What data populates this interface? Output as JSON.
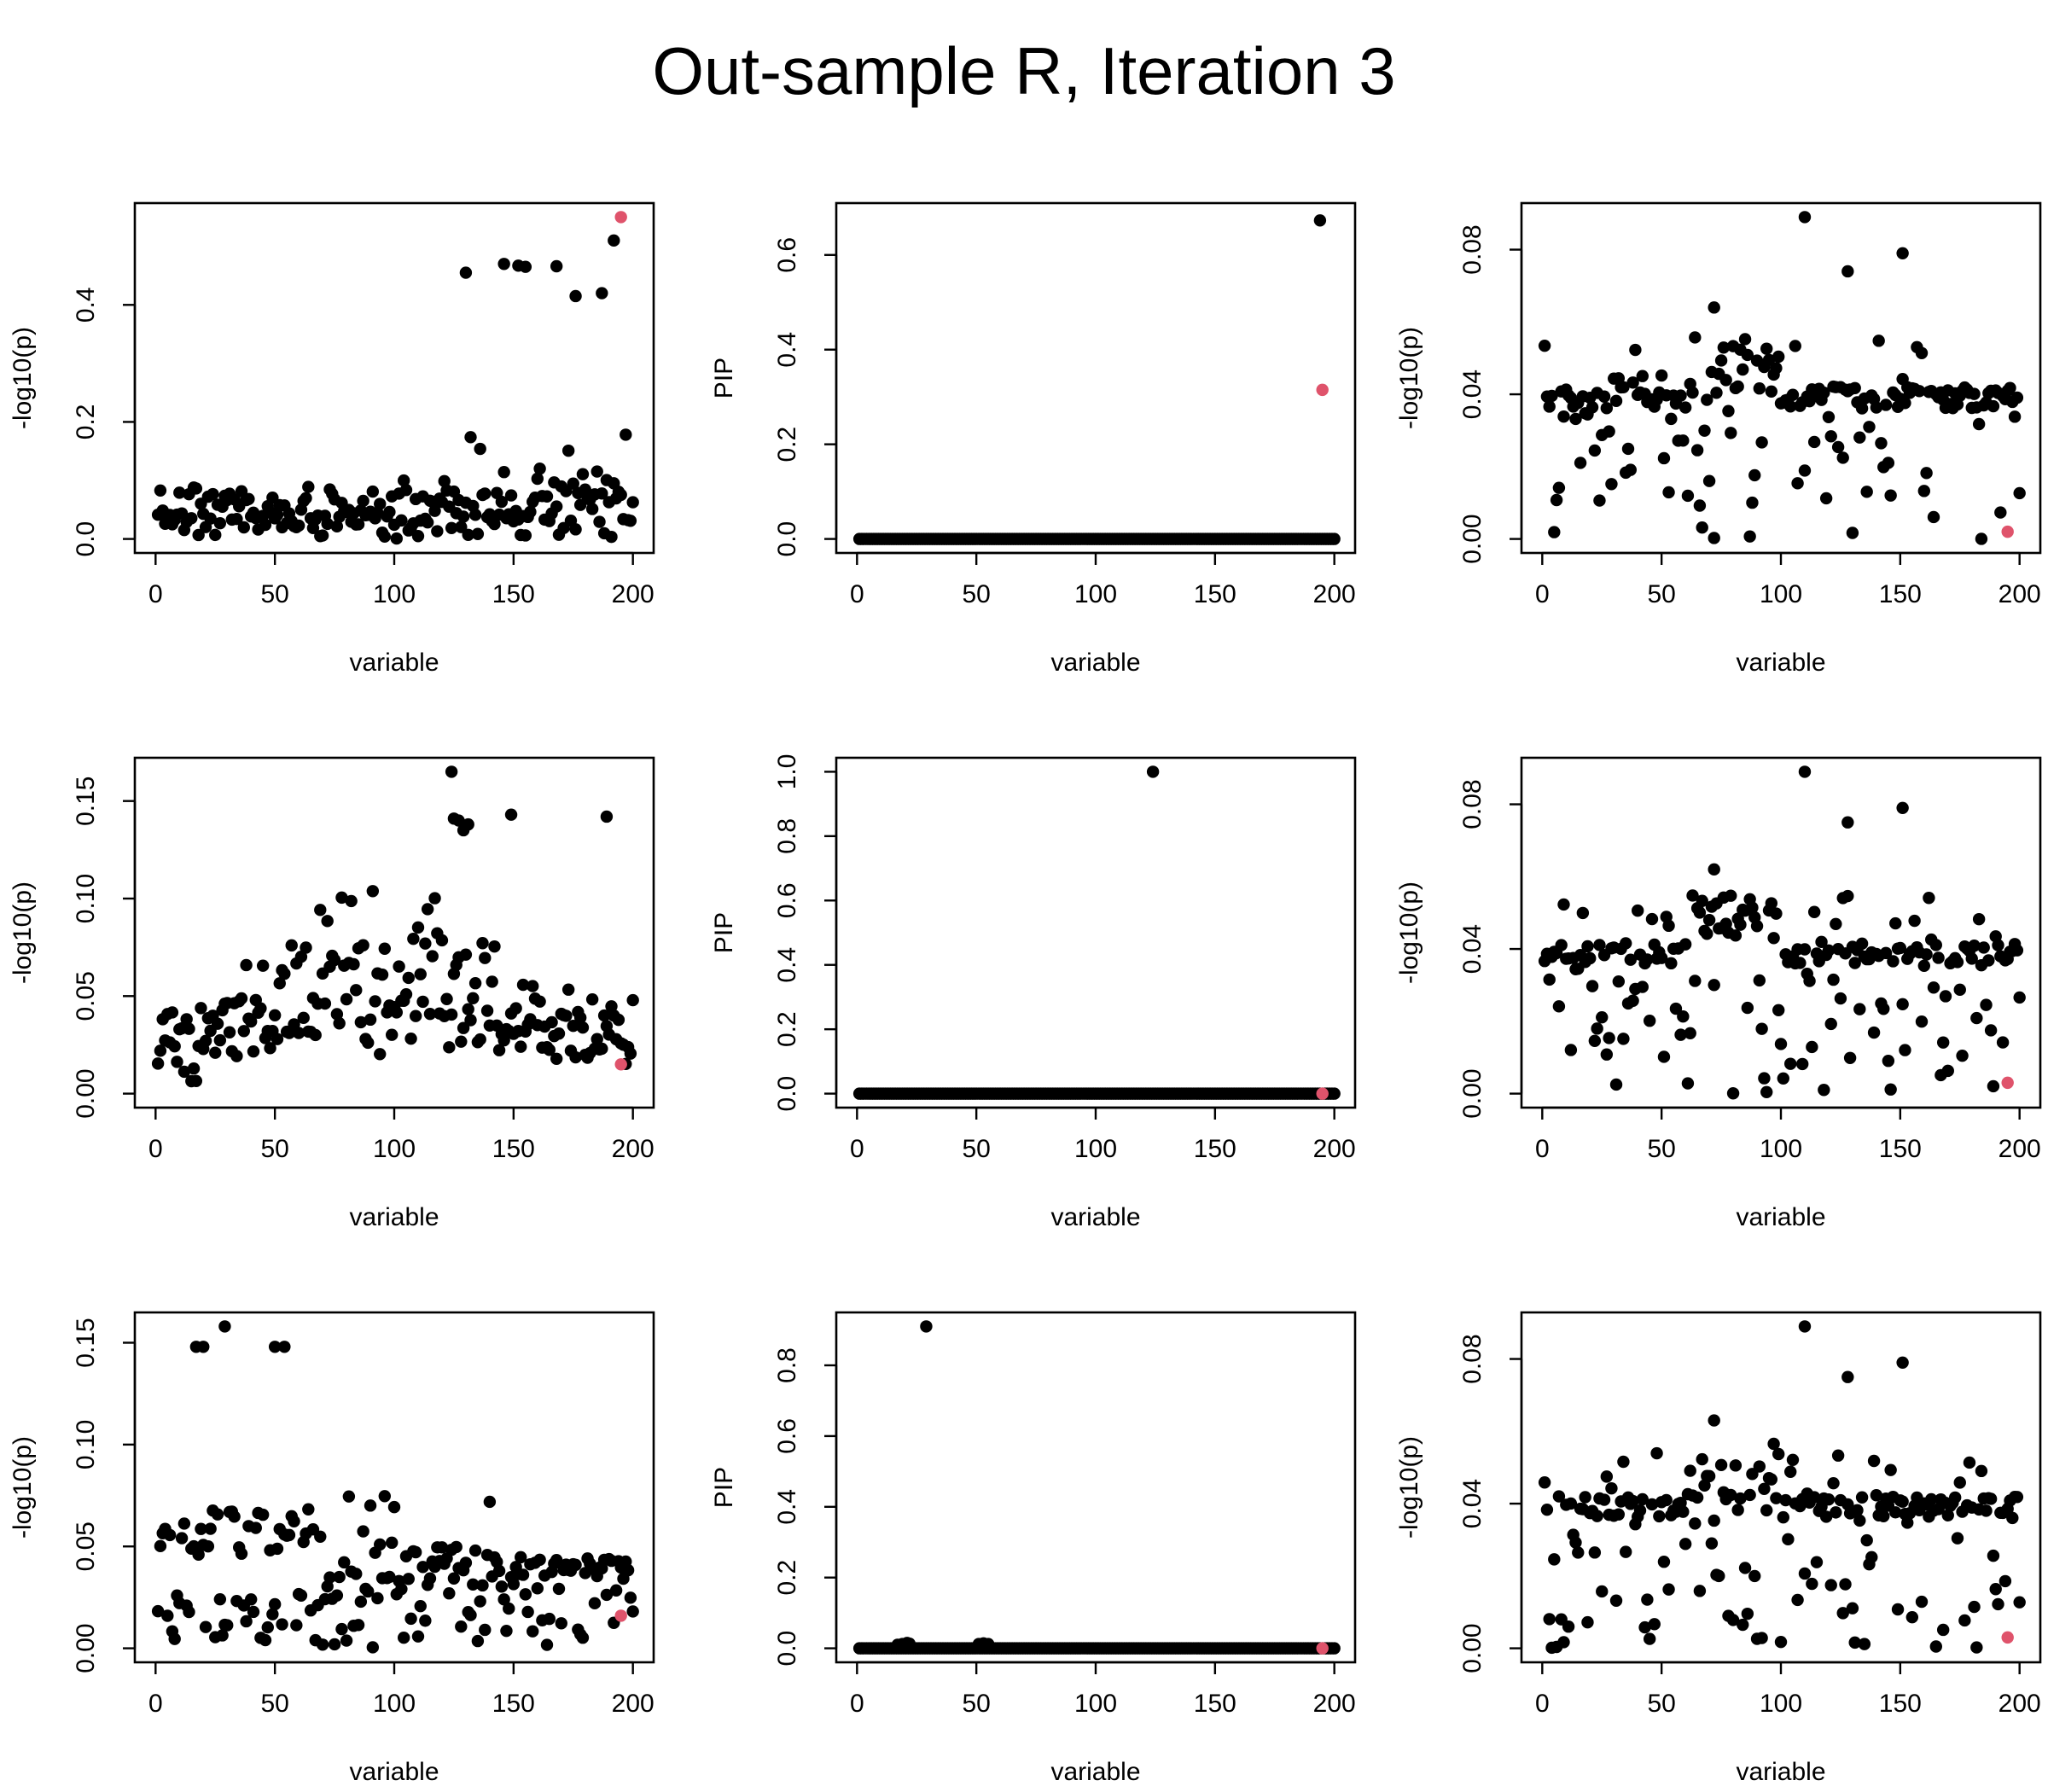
{
  "figure": {
    "title": "Out-sample R, Iteration 3",
    "colors": {
      "point": "#000000",
      "highlight": "#DF536B",
      "background": "#ffffff"
    }
  },
  "chart_data": [
    {
      "type": "scatter",
      "panel": "row1-col1",
      "xlabel": "variable",
      "ylabel": "-log10(p)",
      "xlim": [
        0,
        200
      ],
      "ylim": [
        0,
        0.55
      ],
      "xticks": [
        "0",
        "50",
        "100",
        "150",
        "200"
      ],
      "yticks": [
        "0.0",
        "0.2",
        "0.4"
      ],
      "highlight": {
        "x": 195,
        "y": 0.55
      },
      "notable_points": [
        {
          "x": 130,
          "y": 0.455
        },
        {
          "x": 146,
          "y": 0.47
        },
        {
          "x": 152,
          "y": 0.467
        },
        {
          "x": 155,
          "y": 0.465
        },
        {
          "x": 168,
          "y": 0.466
        },
        {
          "x": 176,
          "y": 0.415
        },
        {
          "x": 187,
          "y": 0.42
        },
        {
          "x": 192,
          "y": 0.51
        }
      ]
    },
    {
      "type": "scatter",
      "panel": "row1-col2",
      "xlabel": "variable",
      "ylabel": "PIP",
      "xlim": [
        0,
        200
      ],
      "ylim": [
        0,
        0.68
      ],
      "xticks": [
        "0",
        "50",
        "100",
        "150",
        "200"
      ],
      "yticks": [
        "0.0",
        "0.2",
        "0.4",
        "0.6"
      ],
      "highlight": {
        "x": 195,
        "y": 0.315
      },
      "notable_points": [
        {
          "x": 194,
          "y": 0.673
        }
      ]
    },
    {
      "type": "scatter",
      "panel": "row1-col3",
      "xlabel": "variable",
      "ylabel": "-log10(p)",
      "xlim": [
        0,
        200
      ],
      "ylim": [
        0,
        0.089
      ],
      "xticks": [
        "0",
        "50",
        "100",
        "150",
        "200"
      ],
      "yticks": [
        "0.00",
        "0.04",
        "0.08"
      ],
      "highlight": {
        "x": 195,
        "y": 0.002
      },
      "notable_points": [
        {
          "x": 110,
          "y": 0.089
        },
        {
          "x": 151,
          "y": 0.079
        },
        {
          "x": 128,
          "y": 0.074
        },
        {
          "x": 72,
          "y": 0.064
        }
      ]
    },
    {
      "type": "scatter",
      "panel": "row2-col1",
      "xlabel": "variable",
      "ylabel": "-log10(p)",
      "xlim": [
        0,
        200
      ],
      "ylim": [
        0,
        0.165
      ],
      "xticks": [
        "0",
        "50",
        "100",
        "150",
        "200"
      ],
      "yticks": [
        "0.00",
        "0.05",
        "0.10",
        "0.15"
      ],
      "highlight": {
        "x": 195,
        "y": 0.015
      },
      "notable_points": [
        {
          "x": 124,
          "y": 0.165
        },
        {
          "x": 125,
          "y": 0.141
        },
        {
          "x": 127,
          "y": 0.14
        },
        {
          "x": 129,
          "y": 0.135
        },
        {
          "x": 131,
          "y": 0.138
        },
        {
          "x": 149,
          "y": 0.143
        },
        {
          "x": 189,
          "y": 0.142
        }
      ]
    },
    {
      "type": "scatter",
      "panel": "row2-col2",
      "xlabel": "variable",
      "ylabel": "PIP",
      "xlim": [
        0,
        200
      ],
      "ylim": [
        0,
        1.0
      ],
      "xticks": [
        "0",
        "50",
        "100",
        "150",
        "200"
      ],
      "yticks": [
        "0.0",
        "0.2",
        "0.4",
        "0.6",
        "0.8",
        "1.0"
      ],
      "highlight": {
        "x": 195,
        "y": 0.0
      },
      "notable_points": [
        {
          "x": 124,
          "y": 1.0
        }
      ]
    },
    {
      "type": "scatter",
      "panel": "row2-col3",
      "xlabel": "variable",
      "ylabel": "-log10(p)",
      "xlim": [
        0,
        200
      ],
      "ylim": [
        0,
        0.089
      ],
      "xticks": [
        "0",
        "50",
        "100",
        "150",
        "200"
      ],
      "yticks": [
        "0.00",
        "0.04",
        "0.08"
      ],
      "highlight": {
        "x": 195,
        "y": 0.003
      },
      "notable_points": [
        {
          "x": 110,
          "y": 0.089
        },
        {
          "x": 151,
          "y": 0.079
        },
        {
          "x": 128,
          "y": 0.075
        },
        {
          "x": 72,
          "y": 0.062
        }
      ]
    },
    {
      "type": "scatter",
      "panel": "row3-col1",
      "xlabel": "variable",
      "ylabel": "-log10(p)",
      "xlim": [
        0,
        200
      ],
      "ylim": [
        0,
        0.158
      ],
      "xticks": [
        "0",
        "50",
        "100",
        "150",
        "200"
      ],
      "yticks": [
        "0.00",
        "0.05",
        "0.10",
        "0.15"
      ],
      "highlight": {
        "x": 195,
        "y": 0.016
      },
      "notable_points": [
        {
          "x": 17,
          "y": 0.148
        },
        {
          "x": 20,
          "y": 0.148
        },
        {
          "x": 29,
          "y": 0.158
        },
        {
          "x": 50,
          "y": 0.148
        },
        {
          "x": 54,
          "y": 0.148
        }
      ]
    },
    {
      "type": "scatter",
      "panel": "row3-col2",
      "xlabel": "variable",
      "ylabel": "PIP",
      "xlim": [
        0,
        200
      ],
      "ylim": [
        0,
        0.91
      ],
      "xticks": [
        "0",
        "50",
        "100",
        "150",
        "200"
      ],
      "yticks": [
        "0.0",
        "0.2",
        "0.4",
        "0.6",
        "0.8"
      ],
      "highlight": {
        "x": 195,
        "y": 0.0
      },
      "notable_points": [
        {
          "x": 29,
          "y": 0.91
        }
      ]
    },
    {
      "type": "scatter",
      "panel": "row3-col3",
      "xlabel": "variable",
      "ylabel": "-log10(p)",
      "xlim": [
        0,
        200
      ],
      "ylim": [
        0,
        0.089
      ],
      "xticks": [
        "0",
        "50",
        "100",
        "150",
        "200"
      ],
      "yticks": [
        "0.00",
        "0.04",
        "0.08"
      ],
      "highlight": {
        "x": 195,
        "y": 0.003
      },
      "notable_points": [
        {
          "x": 110,
          "y": 0.089
        },
        {
          "x": 151,
          "y": 0.079
        },
        {
          "x": 128,
          "y": 0.075
        },
        {
          "x": 72,
          "y": 0.063
        }
      ]
    }
  ]
}
